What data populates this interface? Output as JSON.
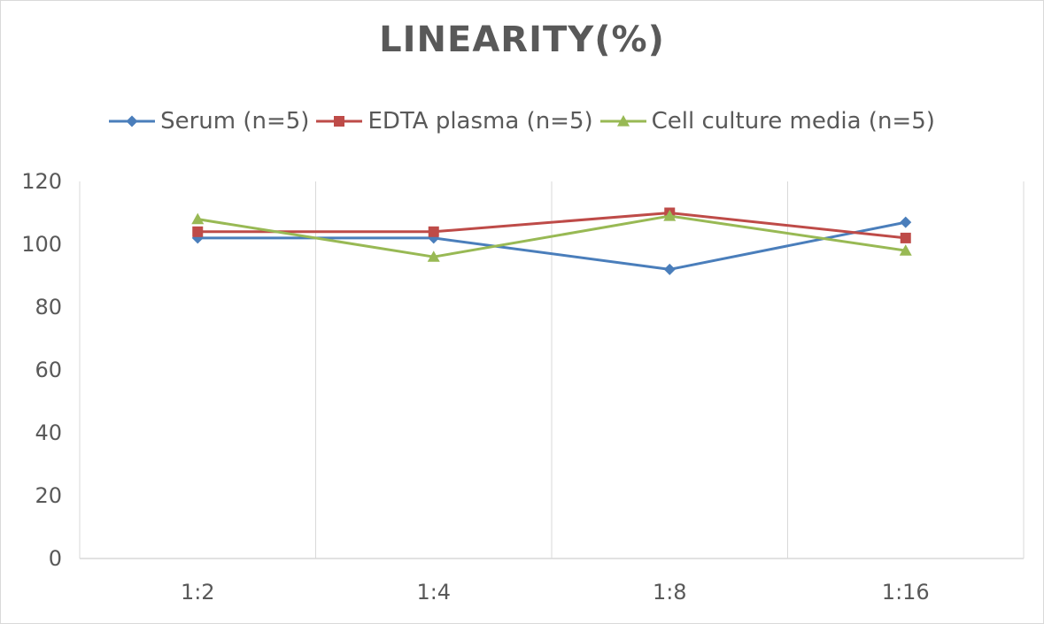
{
  "chart_data": {
    "type": "line",
    "title": "LINEARITY(%)",
    "categories": [
      "1:2",
      "1:4",
      "1:8",
      "1:16"
    ],
    "ylim": [
      0,
      120
    ],
    "yticks": [
      0,
      20,
      40,
      60,
      80,
      100,
      120
    ],
    "grid": "vertical",
    "legend_position": "top",
    "series": [
      {
        "name": "Serum (n=5)",
        "values": [
          102,
          102,
          92,
          107
        ],
        "color": "#4a7ebb",
        "marker": "diamond"
      },
      {
        "name": "EDTA plasma (n=5)",
        "values": [
          104,
          104,
          110,
          102
        ],
        "color": "#be4b48",
        "marker": "square"
      },
      {
        "name": "Cell culture media (n=5)",
        "values": [
          108,
          96,
          109,
          98
        ],
        "color": "#98b954",
        "marker": "triangle"
      }
    ]
  }
}
